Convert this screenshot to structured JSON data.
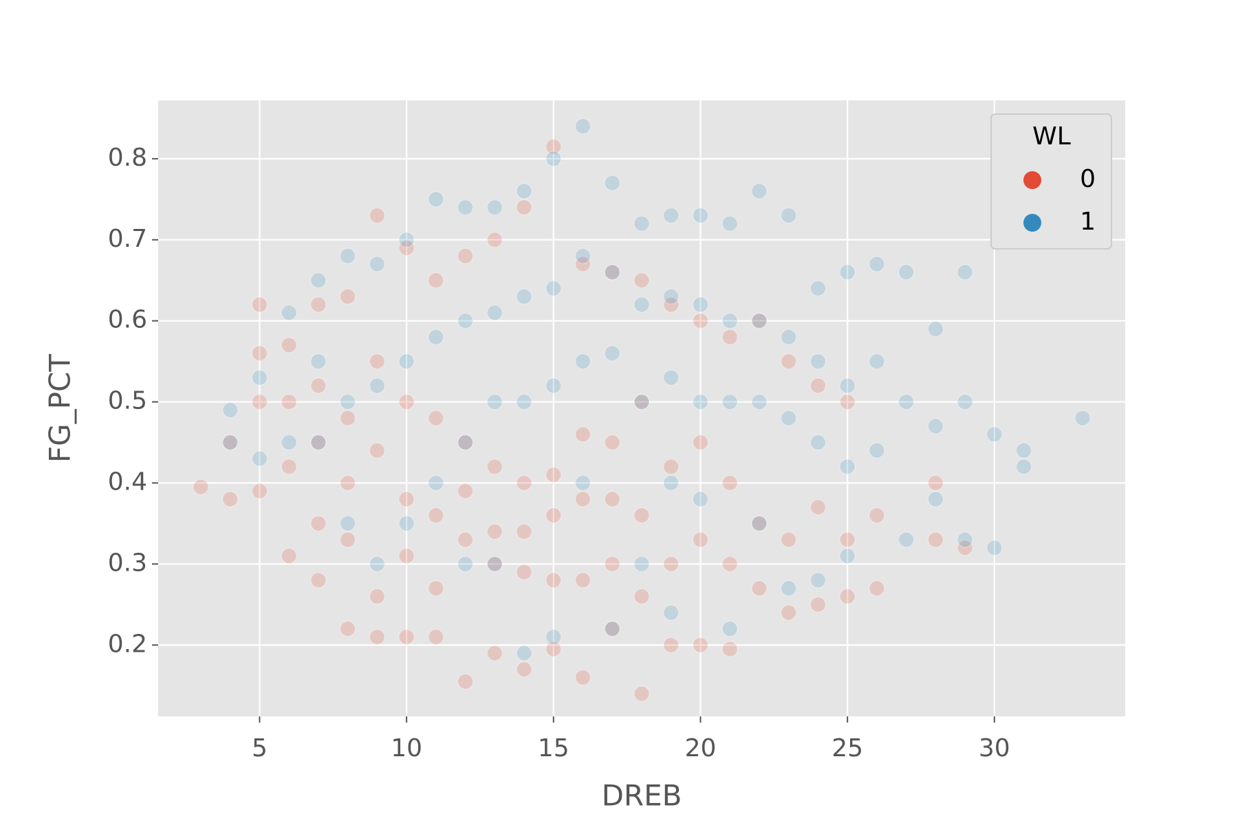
{
  "chart_data": {
    "type": "scatter",
    "xlabel": "DREB",
    "ylabel": "FG_PCT",
    "xlim": [
      1.55,
      34.45
    ],
    "ylim": [
      0.112,
      0.872
    ],
    "xticks": [
      5,
      10,
      15,
      20,
      25,
      30
    ],
    "yticks": [
      0.2,
      0.3,
      0.4,
      0.5,
      0.6,
      0.7,
      0.8
    ],
    "grid": true,
    "legend": {
      "title": "WL",
      "position": "upper right"
    },
    "series": [
      {
        "name": "0",
        "color": "#E24A33",
        "x": [
          3,
          4,
          4,
          5,
          5,
          5,
          5,
          6,
          6,
          6,
          6,
          7,
          7,
          7,
          7,
          7,
          8,
          8,
          8,
          8,
          8,
          9,
          9,
          9,
          9,
          9,
          10,
          10,
          10,
          10,
          10,
          11,
          11,
          11,
          11,
          11,
          12,
          12,
          12,
          12,
          12,
          13,
          13,
          13,
          13,
          13,
          14,
          14,
          14,
          14,
          14,
          15,
          15,
          15,
          15,
          15,
          16,
          16,
          16,
          16,
          16,
          17,
          17,
          17,
          17,
          17,
          18,
          18,
          18,
          18,
          18,
          19,
          19,
          19,
          19,
          20,
          20,
          20,
          20,
          21,
          21,
          21,
          21,
          22,
          22,
          22,
          23,
          23,
          23,
          24,
          24,
          24,
          25,
          25,
          25,
          26,
          26,
          28,
          28,
          29
        ],
        "values": [
          0.395,
          0.38,
          0.45,
          0.62,
          0.5,
          0.39,
          0.56,
          0.31,
          0.57,
          0.42,
          0.5,
          0.28,
          0.62,
          0.45,
          0.52,
          0.35,
          0.22,
          0.63,
          0.4,
          0.48,
          0.33,
          0.21,
          0.73,
          0.44,
          0.55,
          0.26,
          0.21,
          0.69,
          0.38,
          0.5,
          0.31,
          0.21,
          0.65,
          0.36,
          0.48,
          0.27,
          0.155,
          0.68,
          0.33,
          0.45,
          0.39,
          0.19,
          0.7,
          0.34,
          0.42,
          0.3,
          0.17,
          0.74,
          0.34,
          0.4,
          0.29,
          0.195,
          0.815,
          0.28,
          0.41,
          0.36,
          0.16,
          0.67,
          0.28,
          0.38,
          0.46,
          0.22,
          0.66,
          0.3,
          0.38,
          0.45,
          0.14,
          0.65,
          0.26,
          0.36,
          0.5,
          0.2,
          0.62,
          0.3,
          0.42,
          0.2,
          0.6,
          0.33,
          0.45,
          0.195,
          0.58,
          0.3,
          0.4,
          0.27,
          0.6,
          0.35,
          0.24,
          0.55,
          0.33,
          0.25,
          0.52,
          0.37,
          0.26,
          0.5,
          0.33,
          0.27,
          0.36,
          0.33,
          0.4,
          0.32
        ]
      },
      {
        "name": "1",
        "color": "#348ABD",
        "x": [
          4,
          4,
          5,
          5,
          6,
          6,
          7,
          7,
          7,
          8,
          8,
          8,
          9,
          9,
          9,
          10,
          10,
          10,
          11,
          11,
          11,
          12,
          12,
          12,
          12,
          13,
          13,
          13,
          13,
          14,
          14,
          14,
          14,
          15,
          15,
          15,
          15,
          16,
          16,
          16,
          16,
          17,
          17,
          17,
          17,
          18,
          18,
          18,
          18,
          19,
          19,
          19,
          19,
          19,
          20,
          20,
          20,
          20,
          21,
          21,
          21,
          21,
          22,
          22,
          22,
          22,
          23,
          23,
          23,
          23,
          24,
          24,
          24,
          24,
          25,
          25,
          25,
          25,
          26,
          26,
          26,
          27,
          27,
          27,
          28,
          28,
          28,
          29,
          29,
          29,
          30,
          30,
          31,
          31,
          33
        ],
        "values": [
          0.49,
          0.45,
          0.53,
          0.43,
          0.61,
          0.45,
          0.65,
          0.55,
          0.45,
          0.68,
          0.5,
          0.35,
          0.67,
          0.52,
          0.3,
          0.7,
          0.55,
          0.35,
          0.75,
          0.58,
          0.4,
          0.74,
          0.6,
          0.45,
          0.3,
          0.74,
          0.61,
          0.5,
          0.3,
          0.76,
          0.63,
          0.5,
          0.19,
          0.8,
          0.64,
          0.52,
          0.21,
          0.84,
          0.68,
          0.55,
          0.4,
          0.77,
          0.66,
          0.56,
          0.22,
          0.72,
          0.62,
          0.5,
          0.3,
          0.73,
          0.63,
          0.53,
          0.4,
          0.24,
          0.73,
          0.62,
          0.5,
          0.38,
          0.72,
          0.6,
          0.5,
          0.22,
          0.76,
          0.6,
          0.5,
          0.35,
          0.73,
          0.58,
          0.48,
          0.27,
          0.64,
          0.55,
          0.45,
          0.28,
          0.66,
          0.52,
          0.42,
          0.31,
          0.67,
          0.55,
          0.44,
          0.66,
          0.5,
          0.33,
          0.59,
          0.47,
          0.38,
          0.66,
          0.5,
          0.33,
          0.46,
          0.32,
          0.44,
          0.42,
          0.48
        ]
      }
    ]
  }
}
